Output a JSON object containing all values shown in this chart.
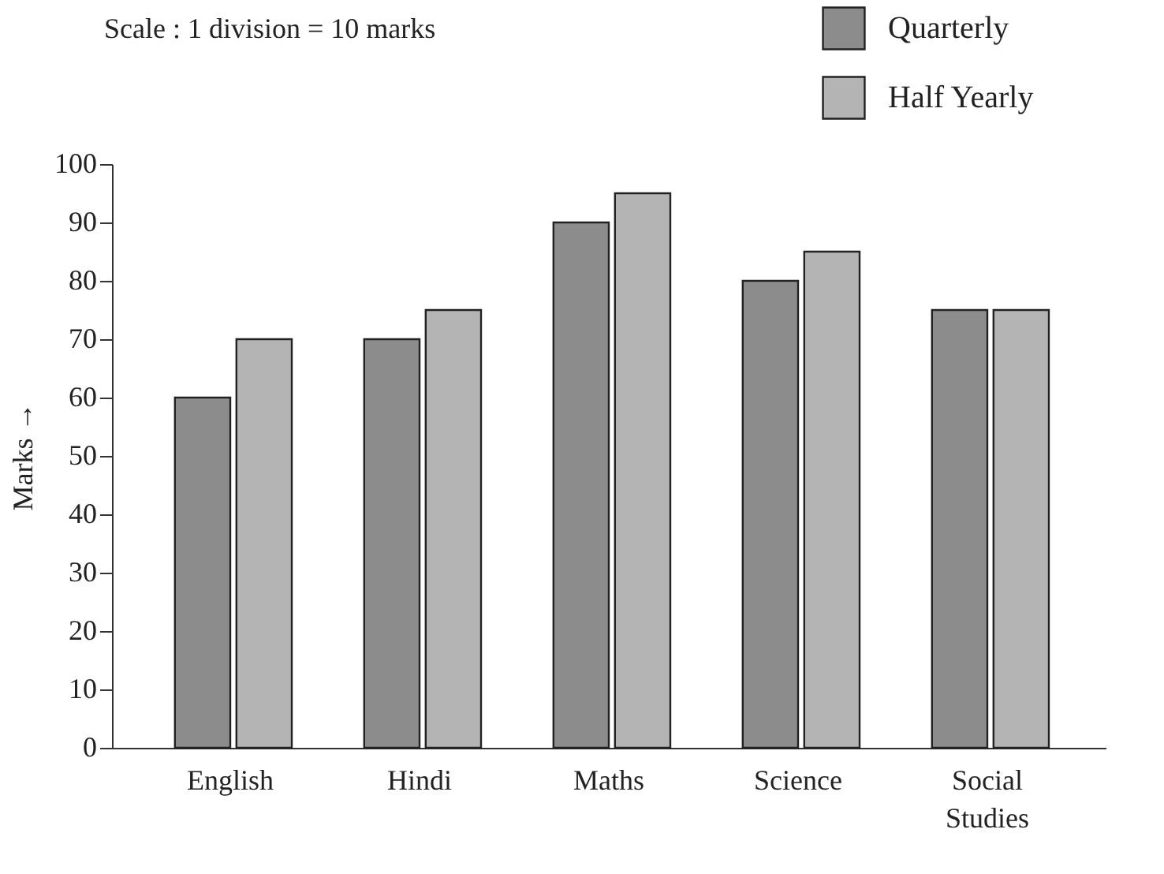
{
  "chart_data": {
    "type": "bar",
    "ylabel": "Marks →",
    "annotations": [
      "Scale : 1 division = 10 marks"
    ],
    "categories": [
      "English",
      "Hindi",
      "Maths",
      "Science",
      "Social Studies"
    ],
    "series": [
      {
        "name": "Quarterly",
        "color": "#8c8c8c",
        "values": [
          60,
          70,
          90,
          80,
          75
        ]
      },
      {
        "name": "Half Yearly",
        "color": "#b4b4b4",
        "values": [
          70,
          75,
          95,
          85,
          75
        ]
      }
    ],
    "ylim": [
      0,
      100
    ],
    "yticks": [
      0,
      10,
      20,
      30,
      40,
      50,
      60,
      70,
      80,
      90,
      100
    ],
    "grid": false,
    "legend": "top right"
  }
}
